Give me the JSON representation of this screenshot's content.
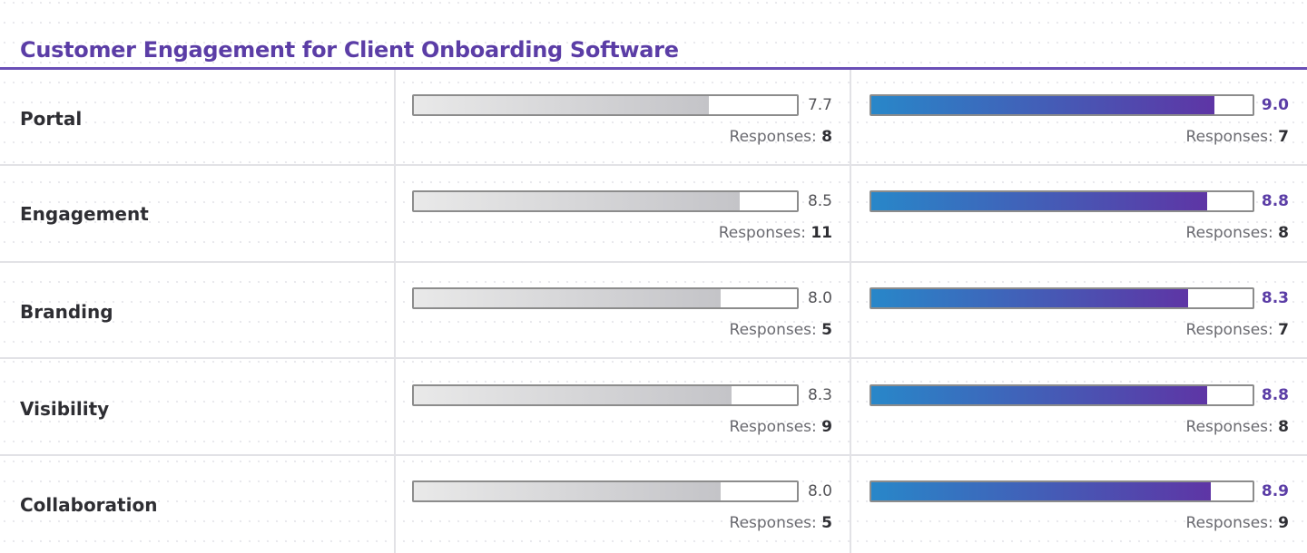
{
  "title": "Customer Engagement for Client Onboarding Software",
  "colors": {
    "title": "#5b3da6",
    "gray_bar_start": "#e9e9e9",
    "gray_bar_end": "#c4c4c8",
    "brand_bar_start": "#2887c9",
    "brand_bar_end": "#5e35a5"
  },
  "responses_label": "Responses:",
  "chart_data": {
    "type": "bar",
    "orientation": "horizontal",
    "title": "Customer Engagement for Client Onboarding Software",
    "xlim": [
      0,
      10
    ],
    "categories": [
      "Portal",
      "Engagement",
      "Branding",
      "Visibility",
      "Collaboration"
    ],
    "series": [
      {
        "values": [
          7.7,
          8.5,
          8.0,
          8.3,
          8.0
        ],
        "value_labels": [
          "7.7",
          "8.5",
          "8.0",
          "8.3",
          "8.0"
        ],
        "responses": [
          8,
          11,
          5,
          9,
          5
        ]
      },
      {
        "values": [
          9.0,
          8.8,
          8.3,
          8.8,
          8.9
        ],
        "value_labels": [
          "9.0",
          "8.8",
          "8.3",
          "8.8",
          "8.9"
        ],
        "responses": [
          7,
          8,
          7,
          8,
          9
        ]
      }
    ]
  }
}
